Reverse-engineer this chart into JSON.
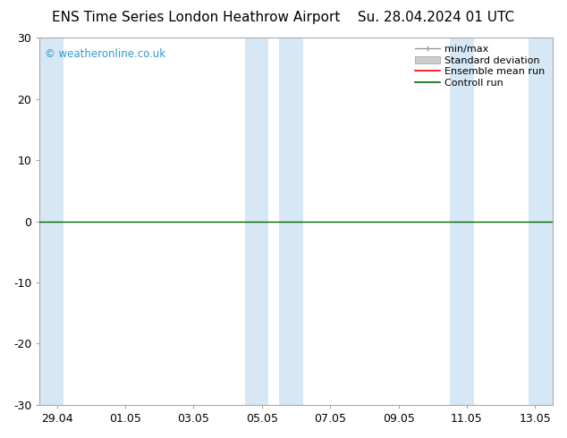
{
  "title_left": "ENS Time Series London Heathrow Airport",
  "title_right": "Su. 28.04.2024 01 UTC",
  "ylim": [
    -30,
    30
  ],
  "yticks": [
    -30,
    -20,
    -10,
    0,
    10,
    20,
    30
  ],
  "ytick_labels": [
    "-30",
    "-20",
    "-10",
    "0",
    "10",
    "20",
    "30"
  ],
  "x_tick_labels": [
    "29.04",
    "01.05",
    "03.05",
    "05.05",
    "07.05",
    "09.05",
    "11.05",
    "13.05"
  ],
  "x_tick_positions": [
    0.5,
    2.5,
    4.5,
    6.5,
    8.5,
    10.5,
    12.5,
    14.5
  ],
  "xlim": [
    0,
    15
  ],
  "background_color": "#ffffff",
  "plot_bg_color": "#ffffff",
  "shaded_band_color": "#d6e8f5",
  "shaded_bands": [
    [
      0,
      0.7
    ],
    [
      6.0,
      6.7
    ],
    [
      7.0,
      7.7
    ],
    [
      12.0,
      12.7
    ],
    [
      14.3,
      15.0
    ]
  ],
  "zero_line_color": "#006600",
  "border_color": "#aaaaaa",
  "watermark": "© weatheronline.co.uk",
  "watermark_color": "#3399cc",
  "legend_items": [
    {
      "label": "min/max",
      "color": "#999999",
      "lw": 1.0,
      "ls": "-"
    },
    {
      "label": "Standard deviation",
      "color": "#cccccc",
      "lw": 5,
      "ls": "-"
    },
    {
      "label": "Ensemble mean run",
      "color": "#ff0000",
      "lw": 1.2,
      "ls": "-"
    },
    {
      "label": "Controll run",
      "color": "#006600",
      "lw": 1.2,
      "ls": "-"
    }
  ],
  "title_fontsize": 11,
  "tick_fontsize": 9,
  "legend_fontsize": 8,
  "fig_width": 6.34,
  "fig_height": 4.9,
  "dpi": 100
}
